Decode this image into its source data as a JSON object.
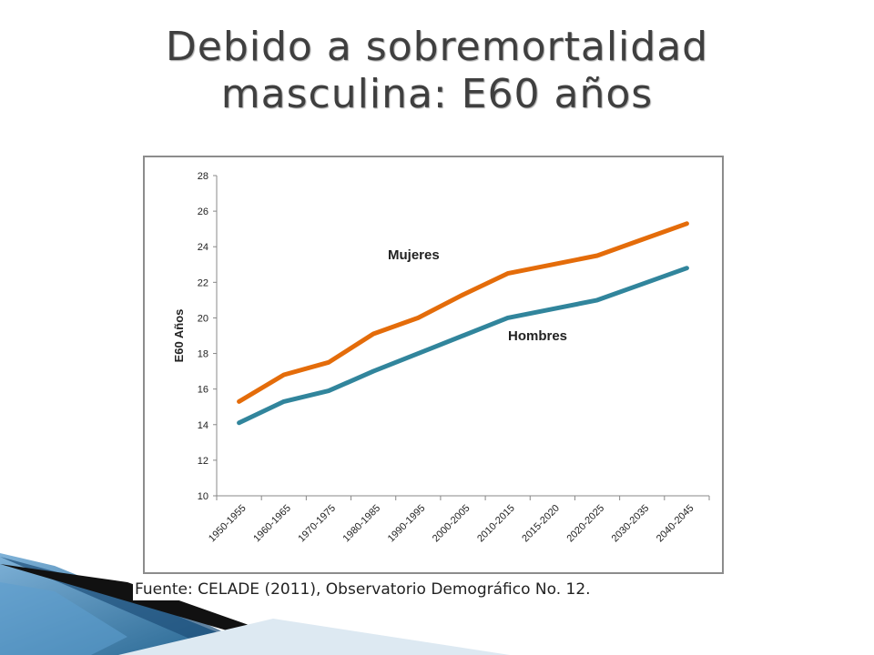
{
  "slide": {
    "title_line1": "Debido a sobremortalidad",
    "title_line2": "masculina: E60 años",
    "source": "Fuente: CELADE (2011), Observatorio Demográfico No. 12."
  },
  "chart_data": {
    "type": "line",
    "ylabel": "E60 Años",
    "xlabel": "",
    "ylim": [
      10,
      28
    ],
    "yticks": [
      10,
      12,
      14,
      16,
      18,
      20,
      22,
      24,
      26,
      28
    ],
    "grid": false,
    "categories": [
      "1950-1955",
      "1960-1965",
      "1970-1975",
      "1980-1985",
      "1990-1995",
      "2000-2005",
      "2010-2015",
      "2015-2020",
      "2020-2025",
      "2030-2035",
      "2040-2045"
    ],
    "series": [
      {
        "name": "Mujeres",
        "color": "#e46c0a",
        "values": [
          15.3,
          16.8,
          17.5,
          19.1,
          20.0,
          21.3,
          22.5,
          23.0,
          23.5,
          24.4,
          25.3
        ]
      },
      {
        "name": "Hombres",
        "color": "#31859c",
        "values": [
          14.1,
          15.3,
          15.9,
          17.0,
          18.0,
          19.0,
          20.0,
          20.5,
          21.0,
          21.9,
          22.8
        ]
      }
    ],
    "annotations": [
      {
        "text": "Mujeres",
        "series": "Mujeres"
      },
      {
        "text": "Hombres",
        "series": "Hombres"
      }
    ]
  }
}
